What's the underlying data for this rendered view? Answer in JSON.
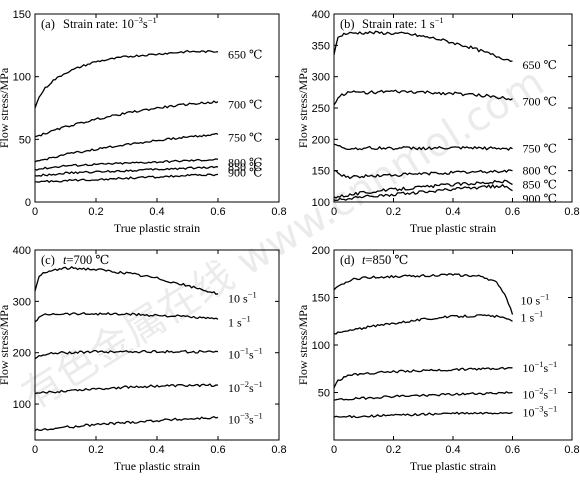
{
  "watermark": "有色金属在线 www.cnnmol.com",
  "chart_data": [
    {
      "type": "line",
      "panel": "(a)",
      "title": "Strain rate: 10⁻³s⁻¹",
      "xlabel": "True plastic strain",
      "ylabel": "Flow stress/MPa",
      "xlim": [
        0,
        0.8
      ],
      "ylim": [
        0,
        150
      ],
      "xticks": [
        0,
        0.2,
        0.4,
        0.6,
        0.8
      ],
      "yticks": [
        0,
        50,
        100,
        150
      ],
      "noise": 0.8,
      "series": [
        {
          "name": "650 ℃",
          "x": [
            0,
            0.01,
            0.03,
            0.06,
            0.1,
            0.15,
            0.2,
            0.3,
            0.4,
            0.5,
            0.6
          ],
          "y": [
            75,
            82,
            90,
            97,
            103,
            108,
            112,
            116,
            118,
            120,
            120
          ]
        },
        {
          "name": "700 ℃",
          "x": [
            0,
            0.1,
            0.2,
            0.3,
            0.4,
            0.5,
            0.6
          ],
          "y": [
            52,
            60,
            66,
            71,
            75,
            78,
            80
          ]
        },
        {
          "name": "750 ℃",
          "x": [
            0,
            0.1,
            0.2,
            0.3,
            0.4,
            0.5,
            0.6
          ],
          "y": [
            32,
            38,
            42,
            46,
            49,
            52,
            54
          ]
        },
        {
          "name": "800 ℃",
          "x": [
            0,
            0.1,
            0.2,
            0.3,
            0.4,
            0.5,
            0.6
          ],
          "y": [
            26,
            29,
            30,
            31,
            32,
            33,
            34
          ]
        },
        {
          "name": "850 ℃",
          "x": [
            0,
            0.1,
            0.2,
            0.3,
            0.4,
            0.5,
            0.6
          ],
          "y": [
            21,
            23,
            24,
            25,
            26,
            27,
            28
          ]
        },
        {
          "name": "900 ℃",
          "x": [
            0,
            0.1,
            0.2,
            0.3,
            0.4,
            0.5,
            0.6
          ],
          "y": [
            16,
            17,
            18,
            19,
            20,
            21,
            22
          ]
        }
      ]
    },
    {
      "type": "line",
      "panel": "(b)",
      "title": "Strain rate: 1 s⁻¹",
      "xlabel": "True plastic strain",
      "ylabel": "Flow stress/MPa",
      "xlim": [
        0,
        0.8
      ],
      "ylim": [
        100,
        400
      ],
      "xticks": [
        0,
        0.2,
        0.4,
        0.6,
        0.8
      ],
      "yticks": [
        100,
        150,
        200,
        250,
        300,
        350,
        400
      ],
      "noise": 2.5,
      "series": [
        {
          "name": "650 ℃",
          "x": [
            0,
            0.01,
            0.03,
            0.08,
            0.15,
            0.25,
            0.35,
            0.45,
            0.55,
            0.6
          ],
          "y": [
            335,
            360,
            368,
            370,
            370,
            368,
            360,
            348,
            332,
            325
          ]
        },
        {
          "name": "700 ℃",
          "x": [
            0,
            0.02,
            0.05,
            0.1,
            0.2,
            0.3,
            0.4,
            0.5,
            0.6
          ],
          "y": [
            255,
            270,
            275,
            275,
            276,
            275,
            273,
            270,
            265
          ]
        },
        {
          "name": "750 ℃",
          "x": [
            0,
            0.02,
            0.05,
            0.1,
            0.2,
            0.3,
            0.4,
            0.5,
            0.6
          ],
          "y": [
            192,
            188,
            185,
            186,
            186,
            186,
            186,
            186,
            185
          ]
        },
        {
          "name": "800 ℃",
          "x": [
            0,
            0.02,
            0.05,
            0.1,
            0.2,
            0.3,
            0.4,
            0.5,
            0.6
          ],
          "y": [
            150,
            144,
            140,
            141,
            143,
            145,
            147,
            148,
            150
          ]
        },
        {
          "name": "850 ℃",
          "x": [
            0,
            0.1,
            0.2,
            0.3,
            0.4,
            0.5,
            0.58,
            0.6
          ],
          "y": [
            108,
            115,
            120,
            124,
            128,
            131,
            133,
            128
          ]
        },
        {
          "name": "900 ℃",
          "x": [
            0,
            0.1,
            0.2,
            0.3,
            0.4,
            0.5,
            0.58,
            0.6
          ],
          "y": [
            103,
            108,
            112,
            116,
            120,
            124,
            126,
            118
          ]
        }
      ]
    },
    {
      "type": "line",
      "panel": "(c)",
      "title": "t=700 ℃",
      "xlabel": "True plastic strain",
      "ylabel": "Flow stress/MPa",
      "xlim": [
        0,
        0.8
      ],
      "ylim": [
        30,
        400
      ],
      "xticks": [
        0,
        0.2,
        0.4,
        0.6,
        0.8
      ],
      "yticks": [
        100,
        200,
        300,
        400
      ],
      "noise": 2.5,
      "series": [
        {
          "name": "10 s⁻¹",
          "x": [
            0,
            0.01,
            0.03,
            0.07,
            0.12,
            0.2,
            0.3,
            0.4,
            0.5,
            0.6
          ],
          "y": [
            320,
            345,
            355,
            362,
            365,
            362,
            355,
            345,
            330,
            315
          ]
        },
        {
          "name": "1 s⁻¹",
          "x": [
            0,
            0.02,
            0.05,
            0.1,
            0.2,
            0.3,
            0.4,
            0.5,
            0.6
          ],
          "y": [
            260,
            272,
            276,
            276,
            276,
            275,
            273,
            270,
            265
          ]
        },
        {
          "name": "10⁻¹s⁻¹",
          "x": [
            0,
            0.02,
            0.05,
            0.1,
            0.2,
            0.3,
            0.4,
            0.5,
            0.6
          ],
          "y": [
            188,
            196,
            198,
            200,
            202,
            202,
            202,
            202,
            202
          ]
        },
        {
          "name": "10⁻²s⁻¹",
          "x": [
            0,
            0.1,
            0.2,
            0.3,
            0.4,
            0.5,
            0.6
          ],
          "y": [
            120,
            126,
            130,
            133,
            135,
            136,
            137
          ]
        },
        {
          "name": "10⁻³s⁻¹",
          "x": [
            0,
            0.1,
            0.2,
            0.3,
            0.4,
            0.5,
            0.6
          ],
          "y": [
            48,
            55,
            60,
            64,
            68,
            71,
            74
          ]
        }
      ]
    },
    {
      "type": "line",
      "panel": "(d)",
      "title": "t=850 ℃",
      "xlabel": "True plastic strain",
      "ylabel": "Flow stress/MPa",
      "xlim": [
        0,
        0.8
      ],
      "ylim": [
        0,
        200
      ],
      "xticks": [
        0,
        0.2,
        0.4,
        0.6,
        0.8
      ],
      "yticks": [
        50,
        100,
        150,
        200
      ],
      "noise": 1.2,
      "series": [
        {
          "name": "10 s⁻¹",
          "x": [
            0,
            0.02,
            0.05,
            0.1,
            0.2,
            0.3,
            0.4,
            0.5,
            0.55,
            0.58,
            0.6
          ],
          "y": [
            158,
            162,
            168,
            171,
            172,
            173,
            174,
            172,
            165,
            150,
            132
          ]
        },
        {
          "name": "1 s⁻¹",
          "x": [
            0,
            0.1,
            0.2,
            0.3,
            0.4,
            0.5,
            0.55,
            0.6
          ],
          "y": [
            112,
            118,
            123,
            127,
            130,
            131,
            130,
            125
          ]
        },
        {
          "name": "10⁻¹s⁻¹",
          "x": [
            0,
            0.01,
            0.05,
            0.1,
            0.2,
            0.3,
            0.4,
            0.5,
            0.6
          ],
          "y": [
            55,
            62,
            68,
            70,
            72,
            73,
            74,
            75,
            76
          ]
        },
        {
          "name": "10⁻²s⁻¹",
          "x": [
            0,
            0.1,
            0.2,
            0.3,
            0.4,
            0.5,
            0.6
          ],
          "y": [
            42,
            44,
            46,
            47,
            48,
            49,
            50
          ]
        },
        {
          "name": "10⁻³s⁻¹",
          "x": [
            0,
            0.1,
            0.2,
            0.3,
            0.4,
            0.5,
            0.6
          ],
          "y": [
            24,
            25,
            26,
            27,
            28,
            28,
            29
          ]
        }
      ]
    }
  ]
}
